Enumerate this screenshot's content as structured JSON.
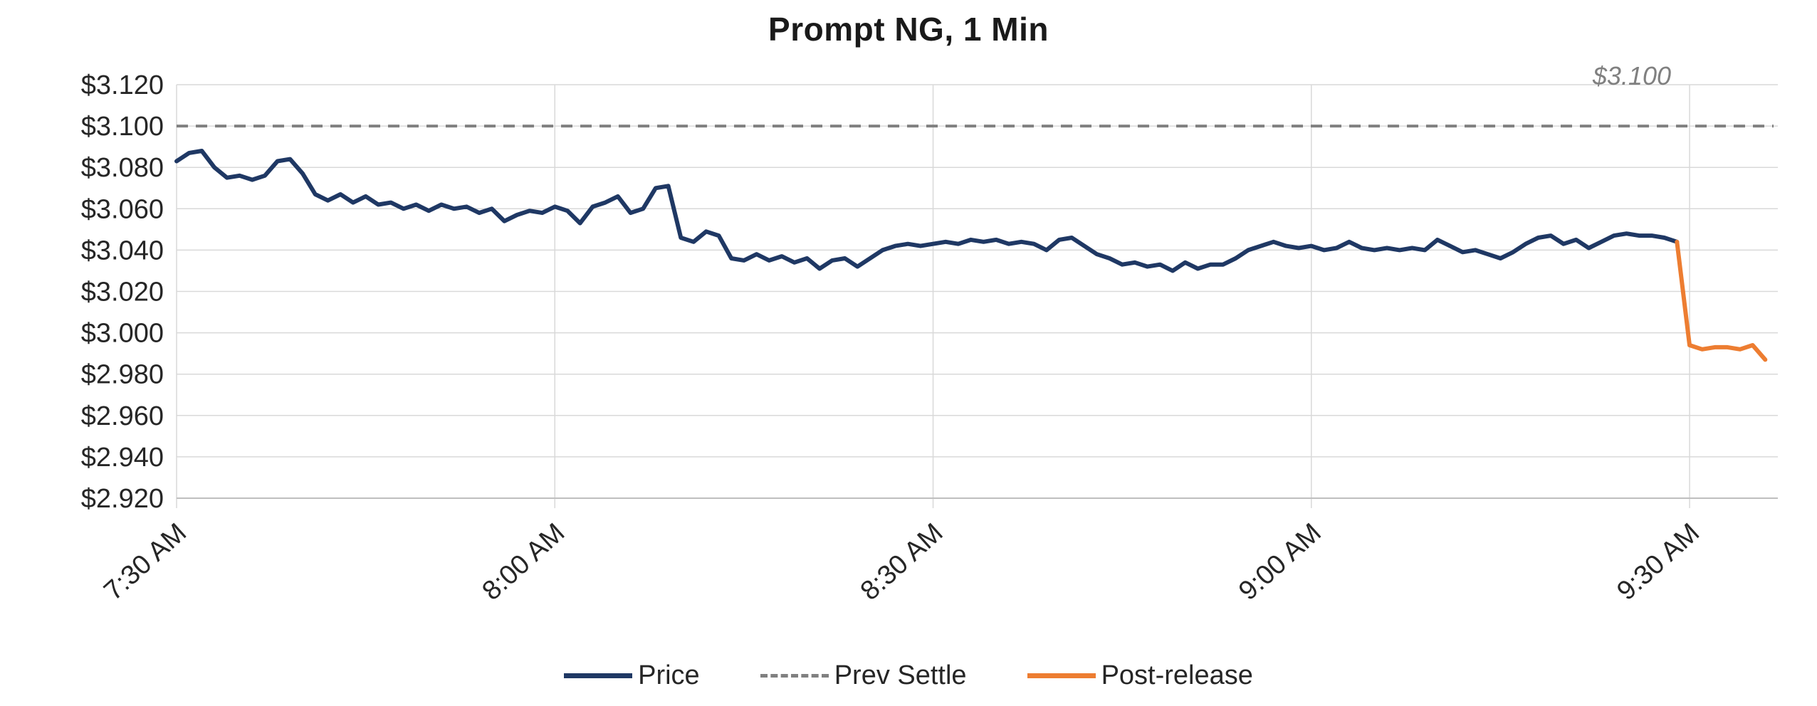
{
  "chart_data": {
    "type": "line",
    "title": "Prompt NG, 1 Min",
    "annotation": "$3.100",
    "x_tick_labels": [
      "7:30 AM",
      "8:00 AM",
      "8:30 AM",
      "9:00 AM",
      "9:30 AM"
    ],
    "x_tick_minutes": [
      0,
      30,
      60,
      90,
      120
    ],
    "x_range_minutes": [
      0,
      127
    ],
    "ylim": [
      2.92,
      3.12
    ],
    "y_ticks": [
      3.12,
      3.1,
      3.08,
      3.06,
      3.04,
      3.02,
      3.0,
      2.98,
      2.96,
      2.94,
      2.92
    ],
    "y_tick_labels": [
      "$3.120",
      "$3.100",
      "$3.080",
      "$3.060",
      "$3.040",
      "$3.020",
      "$3.000",
      "$2.980",
      "$2.960",
      "$2.940",
      "$2.920"
    ],
    "prev_settle": 3.1,
    "grid_on": true,
    "grid_color": "#D9D9D9",
    "axis_color": "#BFBFBF",
    "tick_label_color": "#262626",
    "annotation_color": "#808080",
    "legend_position": "bottom-center",
    "legend": [
      {
        "label": "Price",
        "style": "solid",
        "color": "#1F3864"
      },
      {
        "label": "Prev Settle",
        "style": "dashed",
        "color": "#808080"
      },
      {
        "label": "Post-release",
        "style": "solid",
        "color": "#ED7D31"
      }
    ],
    "series": [
      {
        "name": "Price",
        "color": "#1F3864",
        "x_start_minute": 0,
        "values": [
          3.083,
          3.087,
          3.088,
          3.08,
          3.075,
          3.076,
          3.074,
          3.076,
          3.083,
          3.084,
          3.077,
          3.067,
          3.064,
          3.067,
          3.063,
          3.066,
          3.062,
          3.063,
          3.06,
          3.062,
          3.059,
          3.062,
          3.06,
          3.061,
          3.058,
          3.06,
          3.054,
          3.057,
          3.059,
          3.058,
          3.061,
          3.059,
          3.053,
          3.061,
          3.063,
          3.066,
          3.058,
          3.06,
          3.07,
          3.071,
          3.046,
          3.044,
          3.049,
          3.047,
          3.036,
          3.035,
          3.038,
          3.035,
          3.037,
          3.034,
          3.036,
          3.031,
          3.035,
          3.036,
          3.032,
          3.036,
          3.04,
          3.042,
          3.043,
          3.042,
          3.043,
          3.044,
          3.043,
          3.045,
          3.044,
          3.045,
          3.043,
          3.044,
          3.043,
          3.04,
          3.045,
          3.046,
          3.042,
          3.038,
          3.036,
          3.033,
          3.034,
          3.032,
          3.033,
          3.03,
          3.034,
          3.031,
          3.033,
          3.033,
          3.036,
          3.04,
          3.042,
          3.044,
          3.042,
          3.041,
          3.042,
          3.04,
          3.041,
          3.044,
          3.041,
          3.04,
          3.041,
          3.04,
          3.041,
          3.04,
          3.045,
          3.042,
          3.039,
          3.04,
          3.038,
          3.036,
          3.039,
          3.043,
          3.046,
          3.047,
          3.043,
          3.045,
          3.041,
          3.044,
          3.047,
          3.048,
          3.047,
          3.047,
          3.046,
          3.044
        ]
      },
      {
        "name": "Post-release",
        "color": "#ED7D31",
        "x_start_minute": 119,
        "values": [
          3.044,
          2.994,
          2.992,
          2.993,
          2.993,
          2.992,
          2.994,
          2.987
        ]
      }
    ]
  }
}
